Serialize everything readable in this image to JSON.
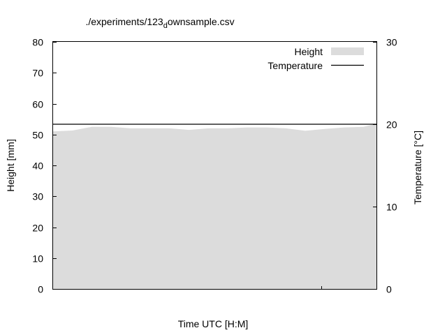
{
  "chart_data": {
    "type": "area",
    "title": "./experiments/123",
    "title_sub": "d",
    "title_rest": "ownsample.csv",
    "xlabel": "Time UTC [H:M]",
    "ylabel": "Height [mm]",
    "y2label": "Temperature [°C]",
    "ylim": [
      0,
      80
    ],
    "y2lim": [
      0,
      30
    ],
    "yticks": [
      "0",
      "10",
      "20",
      "30",
      "40",
      "50",
      "60",
      "70",
      "80"
    ],
    "y2ticks": [
      "0",
      "10",
      "20",
      "30"
    ],
    "legend_position": "top-right",
    "grid": false,
    "series": [
      {
        "name": "Height",
        "kind": "area",
        "color": "#dcdcdc",
        "x": [
          0,
          0.06,
          0.12,
          0.18,
          0.24,
          0.3,
          0.36,
          0.42,
          0.48,
          0.54,
          0.6,
          0.66,
          0.72,
          0.78,
          0.84,
          0.9,
          0.96,
          1.0
        ],
        "values": [
          51.0,
          51.3,
          52.5,
          52.5,
          52.0,
          52.0,
          52.0,
          51.5,
          52.0,
          52.0,
          52.3,
          52.3,
          52.0,
          51.2,
          51.8,
          52.3,
          52.5,
          53.5
        ]
      },
      {
        "name": "Temperature",
        "kind": "line",
        "color": "#000000",
        "axis": "y2",
        "x": [
          0,
          1.0
        ],
        "values": [
          20.0,
          20.0
        ]
      }
    ]
  }
}
